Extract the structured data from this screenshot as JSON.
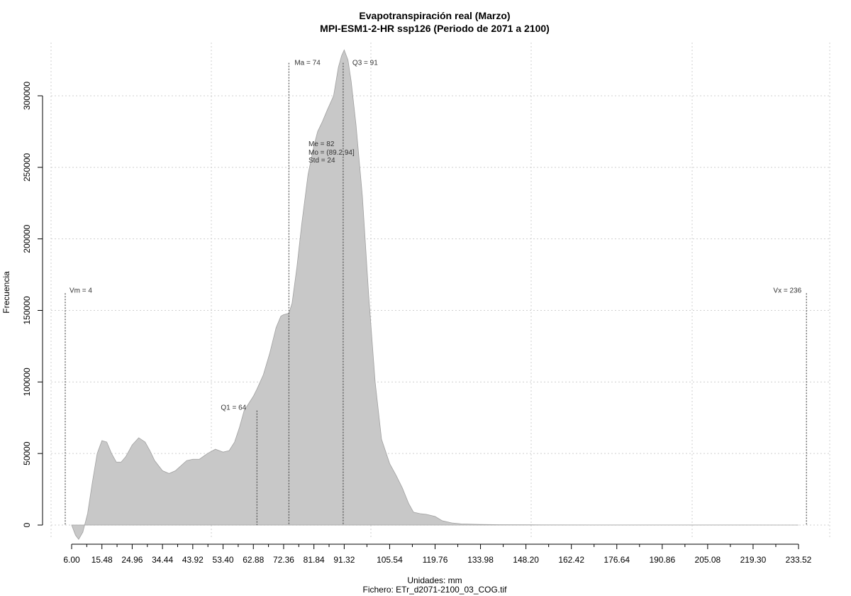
{
  "chart_data": {
    "type": "area",
    "title": "Evapotranspiración real (Marzo)",
    "subtitle": "MPI-ESM1-2-HR ssp126 (Periodo de 2071 a 2100)",
    "xlabel": "Unidades: mm",
    "ylabel": "Frecuencia",
    "footer": "Fichero: ETr_d2071-2100_03_COG.tif",
    "xlim": [
      6.0,
      233.52
    ],
    "ylim": [
      0,
      300000
    ],
    "x_ticks": [
      "6.00",
      "15.48",
      "24.96",
      "34.44",
      "43.92",
      "53.40",
      "62.88",
      "72.36",
      "81.84",
      "91.32",
      "105.54",
      "119.76",
      "133.98",
      "148.20",
      "162.42",
      "176.64",
      "190.86",
      "205.08",
      "219.30",
      "233.52"
    ],
    "x_tick_values": [
      6.0,
      15.48,
      24.96,
      34.44,
      43.92,
      53.4,
      62.88,
      72.36,
      81.84,
      91.32,
      105.54,
      119.76,
      133.98,
      148.2,
      162.42,
      176.64,
      190.86,
      205.08,
      219.3,
      233.52
    ],
    "y_ticks": [
      "0",
      "50000",
      "100000",
      "150000",
      "200000",
      "250000",
      "300000"
    ],
    "y_tick_values": [
      0,
      50000,
      100000,
      150000,
      200000,
      250000,
      300000
    ],
    "grid": true,
    "fill_color": "#c8c8c8",
    "series": [
      {
        "x": [
          6.0,
          7.2,
          8.2,
          9.5,
          11,
          12.5,
          14,
          15.48,
          17,
          18.5,
          20,
          21.5,
          23,
          24.96,
          27,
          29,
          30.5,
          32,
          34.44,
          36.5,
          38.5,
          40.5,
          42,
          43.92,
          46,
          48.5,
          51,
          53.4,
          55.3,
          57,
          58.5,
          60,
          62.88,
          64,
          66,
          68,
          70,
          71.5,
          72.36,
          74,
          75,
          76.5,
          78,
          80,
          81.84,
          83,
          84.5,
          86,
          88,
          89.5,
          90.5,
          91.32,
          92.5,
          93.5,
          95,
          97,
          99,
          101,
          103,
          105.54,
          107.5,
          109.5,
          111.5,
          113,
          115,
          117,
          119.76,
          122,
          125,
          128,
          133.98,
          140,
          150,
          170,
          200,
          233.52
        ],
        "y": [
          0,
          -7000,
          -10000,
          -5000,
          8000,
          30000,
          50000,
          59000,
          58000,
          50000,
          44000,
          44000,
          48000,
          56000,
          61000,
          58000,
          52000,
          45000,
          38000,
          36000,
          38000,
          42000,
          45000,
          46000,
          46000,
          50000,
          53000,
          51000,
          52000,
          58000,
          68000,
          80000,
          90000,
          95000,
          105000,
          120000,
          138000,
          146000,
          147000,
          148000,
          155000,
          180000,
          210000,
          245000,
          265000,
          275000,
          282000,
          290000,
          300000,
          320000,
          328000,
          332000,
          325000,
          310000,
          280000,
          230000,
          160000,
          100000,
          60000,
          43000,
          35000,
          26000,
          15000,
          9000,
          8000,
          7500,
          6000,
          3000,
          1500,
          800,
          400,
          250,
          150,
          80,
          40,
          0
        ]
      }
    ],
    "annotations": [
      {
        "text": "Vm = 4",
        "x": 4,
        "top": 162000
      },
      {
        "text": "Q1 = 64",
        "x": 64,
        "top": 80000
      },
      {
        "text": "Ma = 74",
        "x": 74,
        "top": 323000
      },
      {
        "text": "Q3 = 91",
        "x": 91,
        "top": 323000
      },
      {
        "text": "Vx = 236",
        "x": 236,
        "top": 162000
      }
    ],
    "stats_box": [
      "Me = 82",
      "Mo = (89.2,94]",
      "Std = 24"
    ]
  }
}
